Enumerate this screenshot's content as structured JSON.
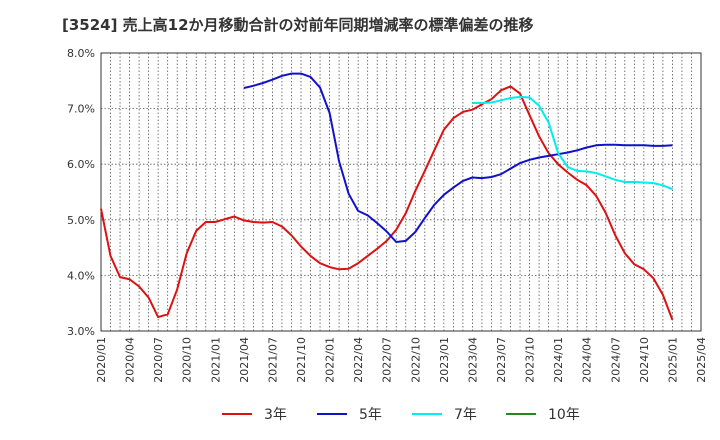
{
  "chart_data": {
    "type": "line",
    "title": "[3524]  売上高12か月移動合計の対前年同期増減率の標準偏差の推移",
    "xlabel": "",
    "ylabel": "",
    "ylim": [
      3.0,
      8.0
    ],
    "xlim": [
      "2020/01",
      "2025/04"
    ],
    "y_ticks": [
      "3.0%",
      "4.0%",
      "5.0%",
      "6.0%",
      "7.0%",
      "8.0%"
    ],
    "x_ticks": [
      "2020/01",
      "2020/04",
      "2020/07",
      "2020/10",
      "2021/01",
      "2021/04",
      "2021/07",
      "2021/10",
      "2022/01",
      "2022/04",
      "2022/07",
      "2022/10",
      "2023/01",
      "2023/04",
      "2023/07",
      "2023/10",
      "2024/01",
      "2024/04",
      "2024/07",
      "2024/10",
      "2025/01",
      "2025/04"
    ],
    "grid": true,
    "legend_position": "bottom",
    "series": [
      {
        "name": "3年",
        "color": "#dd1111",
        "x": [
          "2020/01",
          "2020/02",
          "2020/03",
          "2020/04",
          "2020/05",
          "2020/06",
          "2020/07",
          "2020/08",
          "2020/09",
          "2020/10",
          "2020/11",
          "2020/12",
          "2021/01",
          "2021/02",
          "2021/03",
          "2021/04",
          "2021/05",
          "2021/06",
          "2021/07",
          "2021/08",
          "2021/09",
          "2021/10",
          "2021/11",
          "2021/12",
          "2022/01",
          "2022/02",
          "2022/03",
          "2022/04",
          "2022/05",
          "2022/06",
          "2022/07",
          "2022/08",
          "2022/09",
          "2022/10",
          "2022/11",
          "2022/12",
          "2023/01",
          "2023/02",
          "2023/03",
          "2023/04",
          "2023/05",
          "2023/06",
          "2023/07",
          "2023/08",
          "2023/09",
          "2023/10",
          "2023/11",
          "2023/12",
          "2024/01",
          "2024/02",
          "2024/03",
          "2024/04",
          "2024/05",
          "2024/06",
          "2024/07",
          "2024/08",
          "2024/09",
          "2024/10",
          "2024/11",
          "2024/12",
          "2025/01"
        ],
        "values": [
          5.2,
          4.35,
          3.97,
          3.93,
          3.8,
          3.6,
          3.25,
          3.3,
          3.75,
          4.4,
          4.8,
          4.96,
          4.96,
          5.01,
          5.06,
          4.99,
          4.96,
          4.95,
          4.96,
          4.88,
          4.72,
          4.52,
          4.35,
          4.22,
          4.15,
          4.11,
          4.12,
          4.22,
          4.35,
          4.48,
          4.62,
          4.82,
          5.12,
          5.52,
          5.88,
          6.25,
          6.62,
          6.83,
          6.94,
          6.98,
          7.08,
          7.17,
          7.33,
          7.4,
          7.27,
          6.88,
          6.5,
          6.2,
          6.0,
          5.85,
          5.72,
          5.62,
          5.43,
          5.12,
          4.72,
          4.4,
          4.2,
          4.11,
          3.95,
          3.65,
          3.2
        ]
      },
      {
        "name": "5年",
        "color": "#1111cc",
        "x": [
          "2021/04",
          "2021/05",
          "2021/06",
          "2021/07",
          "2021/08",
          "2021/09",
          "2021/10",
          "2021/11",
          "2021/12",
          "2022/01",
          "2022/02",
          "2022/03",
          "2022/04",
          "2022/05",
          "2022/06",
          "2022/07",
          "2022/08",
          "2022/09",
          "2022/10",
          "2022/11",
          "2022/12",
          "2023/01",
          "2023/02",
          "2023/03",
          "2023/04",
          "2023/05",
          "2023/06",
          "2023/07",
          "2023/08",
          "2023/09",
          "2023/10",
          "2023/11",
          "2023/12",
          "2024/01",
          "2024/02",
          "2024/03",
          "2024/04",
          "2024/05",
          "2024/06",
          "2024/07",
          "2024/08",
          "2024/09",
          "2024/10",
          "2024/11",
          "2024/12",
          "2025/01"
        ],
        "values": [
          7.37,
          7.41,
          7.46,
          7.52,
          7.59,
          7.63,
          7.63,
          7.57,
          7.38,
          6.92,
          6.05,
          5.47,
          5.16,
          5.08,
          4.94,
          4.79,
          4.6,
          4.62,
          4.78,
          5.03,
          5.27,
          5.45,
          5.58,
          5.7,
          5.76,
          5.75,
          5.77,
          5.82,
          5.92,
          6.02,
          6.08,
          6.12,
          6.15,
          6.18,
          6.21,
          6.25,
          6.3,
          6.34,
          6.35,
          6.35,
          6.34,
          6.34,
          6.34,
          6.33,
          6.33,
          6.34
        ]
      },
      {
        "name": "7年",
        "color": "#00eeee",
        "x": [
          "2023/04",
          "2023/05",
          "2023/06",
          "2023/07",
          "2023/08",
          "2023/09",
          "2023/10",
          "2023/11",
          "2023/12",
          "2024/01",
          "2024/02",
          "2024/03",
          "2024/04",
          "2024/05",
          "2024/06",
          "2024/07",
          "2024/08",
          "2024/09",
          "2024/10",
          "2024/11",
          "2024/12",
          "2025/01"
        ],
        "values": [
          7.1,
          7.1,
          7.11,
          7.15,
          7.19,
          7.21,
          7.2,
          7.05,
          6.75,
          6.2,
          5.95,
          5.88,
          5.87,
          5.84,
          5.78,
          5.72,
          5.68,
          5.68,
          5.67,
          5.66,
          5.62,
          5.55
        ]
      },
      {
        "name": "10年",
        "color": "#228822",
        "x": [],
        "values": []
      }
    ]
  }
}
